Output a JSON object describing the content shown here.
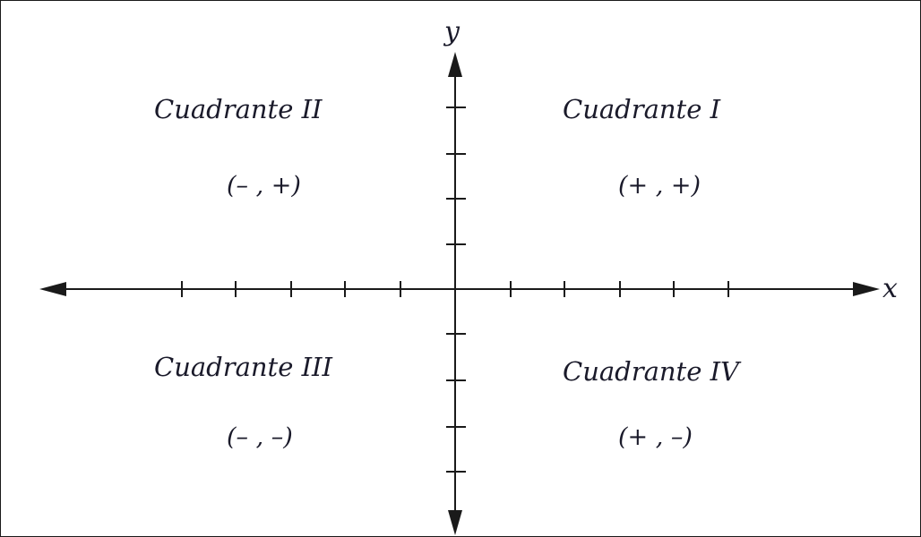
{
  "diagram": {
    "axes": {
      "x_label": "x",
      "y_label": "y",
      "line_color": "#1a1a1a"
    },
    "quadrants": [
      {
        "id": "I",
        "name": "Cuadrante I",
        "signs": "(+ ,  +)"
      },
      {
        "id": "II",
        "name": "Cuadrante II",
        "signs": "(– ,  +)"
      },
      {
        "id": "III",
        "name": "Cuadrante III",
        "signs": "(– ,  –)"
      },
      {
        "id": "IV",
        "name": "Cuadrante IV",
        "signs": "(+ ,  –)"
      }
    ]
  }
}
